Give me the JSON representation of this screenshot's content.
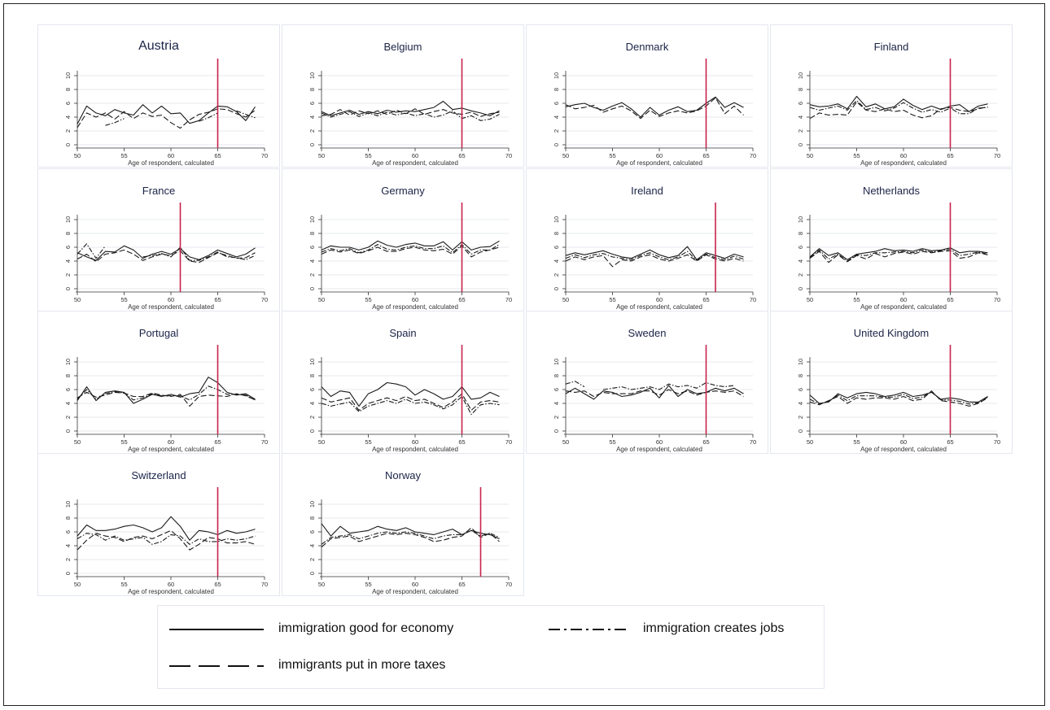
{
  "chart_data": {
    "type": "line",
    "xlabel": "Age of respondent, calculated",
    "xlim": [
      50,
      70
    ],
    "xticks": [
      50,
      55,
      60,
      65,
      70
    ],
    "ylim": [
      0,
      10
    ],
    "yticks": [
      0,
      2,
      4,
      6,
      8,
      10
    ],
    "x": [
      50,
      51,
      52,
      53,
      54,
      55,
      56,
      57,
      58,
      59,
      60,
      61,
      62,
      63,
      64,
      65,
      66,
      67,
      68,
      69
    ],
    "legend": {
      "economy": "immigration good for economy",
      "jobs": "immigration creates jobs",
      "taxes": "immigrants put in more taxes"
    },
    "panels": [
      {
        "title": "Austria",
        "cutoff": 65,
        "economy": [
          3.0,
          5.6,
          4.6,
          4.2,
          5.1,
          4.6,
          4.3,
          5.8,
          4.6,
          5.6,
          4.5,
          4.6,
          3.1,
          3.5,
          4.6,
          5.6,
          5.5,
          4.8,
          3.5,
          5.5
        ],
        "taxes": [
          2.5,
          4.6,
          4.0,
          4.6,
          3.7,
          4.8,
          3.8,
          4.6,
          4.1,
          4.3,
          3.2,
          2.4,
          3.6,
          4.4,
          4.7,
          5.2,
          5.1,
          4.5,
          4.0,
          5.0
        ],
        "jobs": [
          null,
          null,
          null,
          2.8,
          3.2,
          3.8,
          null,
          null,
          null,
          null,
          null,
          null,
          null,
          3.4,
          3.9,
          4.6,
          null,
          4.9,
          4.4,
          3.9
        ]
      },
      {
        "title": "Belgium",
        "cutoff": 65,
        "economy": [
          4.8,
          4.2,
          4.6,
          5.0,
          4.4,
          4.8,
          4.5,
          5.0,
          4.7,
          4.9,
          4.8,
          5.1,
          5.4,
          6.3,
          5.1,
          5.3,
          4.9,
          4.6,
          4.2,
          4.9
        ],
        "taxes": [
          4.2,
          4.4,
          5.1,
          4.3,
          4.9,
          4.5,
          4.9,
          4.4,
          5.0,
          4.5,
          5.2,
          4.4,
          4.8,
          5.1,
          4.6,
          4.4,
          4.7,
          4.1,
          4.5,
          4.7
        ],
        "jobs": [
          4.6,
          4.0,
          4.4,
          4.8,
          4.1,
          4.6,
          4.2,
          4.7,
          4.3,
          4.6,
          4.2,
          4.5,
          4.0,
          4.3,
          4.9,
          3.8,
          4.2,
          3.5,
          3.7,
          4.4
        ]
      },
      {
        "title": "Denmark",
        "cutoff": 65,
        "economy": [
          5.5,
          5.8,
          6.0,
          5.4,
          5.0,
          5.6,
          6.1,
          5.2,
          4.0,
          5.4,
          4.3,
          5.0,
          5.5,
          4.8,
          5.0,
          6.0,
          6.9,
          5.4,
          6.1,
          5.4
        ],
        "taxes": [
          5.8,
          5.2,
          5.4,
          5.7,
          4.7,
          5.2,
          5.6,
          4.9,
          3.8,
          5.0,
          4.1,
          4.6,
          4.9,
          4.6,
          4.9,
          5.6,
          6.8,
          4.5,
          5.6,
          4.3
        ],
        "jobs": [
          null,
          null,
          null,
          null,
          null,
          null,
          null,
          null,
          null,
          null,
          null,
          null,
          null,
          null,
          null,
          null,
          6.5,
          null,
          null,
          null
        ]
      },
      {
        "title": "Finland",
        "cutoff": 65,
        "economy": [
          5.8,
          5.5,
          5.6,
          5.9,
          5.2,
          7.0,
          5.5,
          5.9,
          5.2,
          5.5,
          6.6,
          5.7,
          5.1,
          5.6,
          5.1,
          5.6,
          5.8,
          4.8,
          5.6,
          5.9
        ],
        "taxes": [
          3.8,
          4.6,
          4.3,
          4.4,
          4.3,
          6.2,
          5.0,
          4.8,
          5.2,
          4.8,
          5.0,
          4.3,
          3.9,
          4.2,
          5.2,
          5.4,
          5.0,
          4.8,
          5.2,
          5.5
        ],
        "jobs": [
          5.4,
          5.0,
          5.3,
          5.6,
          5.0,
          6.4,
          5.1,
          5.4,
          4.9,
          5.3,
          6.1,
          5.3,
          4.7,
          5.1,
          4.7,
          5.3,
          4.5,
          4.5,
          5.3,
          5.4
        ]
      },
      {
        "title": "France",
        "cutoff": 61,
        "economy": [
          5.2,
          4.6,
          4.1,
          5.4,
          5.3,
          6.2,
          5.6,
          4.4,
          5.0,
          5.4,
          5.0,
          5.8,
          4.6,
          4.2,
          4.8,
          5.6,
          5.1,
          4.6,
          5.0,
          5.9
        ],
        "taxes": [
          4.3,
          5.0,
          3.9,
          5.0,
          5.2,
          5.6,
          5.0,
          4.1,
          4.6,
          5.0,
          4.8,
          5.5,
          4.0,
          3.8,
          4.5,
          5.2,
          4.8,
          4.4,
          4.5,
          5.2
        ],
        "jobs": [
          5.0,
          6.5,
          4.4,
          6.2,
          null,
          null,
          null,
          4.6,
          4.8,
          5.1,
          4.6,
          6.0,
          4.1,
          4.1,
          4.6,
          5.3,
          4.6,
          4.5,
          4.2,
          4.8
        ]
      },
      {
        "title": "Germany",
        "cutoff": 65,
        "economy": [
          5.6,
          6.2,
          6.0,
          6.0,
          5.6,
          6.0,
          6.9,
          6.3,
          6.0,
          6.4,
          6.6,
          6.2,
          6.2,
          6.8,
          5.6,
          6.8,
          5.6,
          6.0,
          6.1,
          6.9
        ],
        "taxes": [
          5.0,
          5.6,
          5.3,
          5.6,
          5.1,
          5.5,
          6.0,
          5.4,
          5.4,
          5.8,
          6.0,
          5.6,
          5.5,
          5.7,
          5.0,
          6.2,
          4.6,
          5.3,
          5.6,
          6.0
        ],
        "jobs": [
          5.3,
          5.8,
          5.5,
          5.8,
          5.2,
          5.6,
          6.4,
          5.7,
          5.6,
          6.0,
          6.2,
          5.8,
          5.8,
          6.2,
          5.2,
          6.4,
          5.0,
          5.6,
          5.6,
          6.4
        ]
      },
      {
        "title": "Ireland",
        "cutoff": 66,
        "economy": [
          4.8,
          5.2,
          4.9,
          5.2,
          5.5,
          5.0,
          4.6,
          4.4,
          5.0,
          5.6,
          4.9,
          4.5,
          4.8,
          6.1,
          4.2,
          5.2,
          4.8,
          4.4,
          5.0,
          4.6
        ],
        "taxes": [
          4.0,
          4.6,
          4.2,
          4.6,
          4.8,
          3.2,
          4.2,
          4.0,
          4.6,
          4.9,
          4.3,
          4.0,
          4.4,
          4.9,
          4.0,
          4.9,
          4.3,
          4.0,
          4.4,
          4.0
        ],
        "jobs": [
          4.4,
          4.9,
          4.5,
          4.9,
          5.1,
          4.6,
          4.4,
          4.2,
          4.8,
          5.2,
          4.6,
          4.2,
          4.6,
          5.4,
          4.1,
          5.0,
          4.5,
          4.2,
          4.7,
          4.3
        ]
      },
      {
        "title": "Netherlands",
        "cutoff": 65,
        "economy": [
          4.6,
          5.8,
          4.8,
          5.2,
          4.2,
          5.0,
          5.2,
          5.4,
          5.8,
          5.5,
          5.6,
          5.4,
          5.8,
          5.5,
          5.6,
          5.9,
          5.2,
          5.4,
          5.4,
          5.2
        ],
        "taxes": [
          4.4,
          5.4,
          3.8,
          4.9,
          3.9,
          4.8,
          4.3,
          5.1,
          4.6,
          5.1,
          5.3,
          5.0,
          5.4,
          5.2,
          5.4,
          5.5,
          4.4,
          4.6,
          5.2,
          4.9
        ],
        "jobs": [
          4.5,
          5.6,
          4.3,
          5.0,
          4.0,
          4.9,
          4.8,
          5.2,
          5.2,
          5.3,
          5.4,
          5.2,
          5.6,
          5.3,
          5.5,
          5.7,
          4.8,
          5.0,
          5.3,
          5.0
        ]
      },
      {
        "title": "Portugal",
        "cutoff": 65,
        "economy": [
          4.4,
          6.4,
          4.4,
          5.6,
          5.8,
          5.6,
          4.0,
          4.6,
          5.3,
          5.0,
          5.3,
          4.9,
          5.4,
          5.6,
          7.8,
          7.0,
          5.6,
          5.2,
          5.4,
          4.6
        ],
        "taxes": [
          4.8,
          5.6,
          4.9,
          5.2,
          5.6,
          5.5,
          5.0,
          5.0,
          5.5,
          5.2,
          5.0,
          5.3,
          3.6,
          5.0,
          5.2,
          5.1,
          5.0,
          5.4,
          5.1,
          4.5
        ],
        "jobs": [
          4.6,
          6.0,
          4.6,
          5.4,
          5.7,
          5.5,
          4.5,
          4.8,
          5.4,
          5.1,
          5.1,
          5.1,
          4.5,
          5.3,
          6.5,
          6.0,
          5.3,
          5.3,
          5.2,
          4.5
        ]
      },
      {
        "title": "Spain",
        "cutoff": 65,
        "economy": [
          6.4,
          5.0,
          5.8,
          5.6,
          3.6,
          5.4,
          6.0,
          7.0,
          6.8,
          6.4,
          5.2,
          6.0,
          5.4,
          4.6,
          5.0,
          6.4,
          4.6,
          4.8,
          5.6,
          5.0
        ],
        "taxes": [
          4.8,
          4.2,
          4.5,
          4.8,
          3.0,
          4.0,
          4.4,
          4.8,
          4.4,
          5.0,
          4.4,
          4.6,
          4.0,
          3.4,
          4.2,
          5.4,
          3.0,
          4.2,
          4.4,
          4.2
        ],
        "jobs": [
          4.0,
          3.6,
          3.9,
          4.2,
          2.8,
          3.6,
          4.0,
          4.4,
          4.0,
          4.6,
          4.0,
          4.2,
          3.8,
          3.2,
          3.8,
          5.0,
          2.4,
          3.8,
          4.0,
          3.8
        ]
      },
      {
        "title": "Sweden",
        "cutoff": 65,
        "economy": [
          5.4,
          6.2,
          5.4,
          4.6,
          5.8,
          5.6,
          5.0,
          5.2,
          5.6,
          6.2,
          4.8,
          6.6,
          5.0,
          6.0,
          5.4,
          5.6,
          6.2,
          5.8,
          6.2,
          5.4
        ],
        "taxes": [
          5.8,
          5.6,
          5.8,
          5.0,
          5.6,
          5.4,
          5.4,
          5.4,
          5.8,
          5.8,
          5.2,
          6.0,
          5.4,
          5.8,
          5.2,
          5.6,
          5.8,
          5.6,
          5.8,
          5.0
        ],
        "jobs": [
          6.8,
          7.2,
          6.4,
          null,
          6.0,
          6.2,
          6.4,
          6.0,
          6.2,
          6.4,
          6.0,
          6.8,
          6.4,
          6.6,
          6.2,
          7.0,
          6.6,
          6.4,
          6.6,
          null
        ]
      },
      {
        "title": "United Kingdom",
        "cutoff": 65,
        "economy": [
          5.2,
          4.0,
          4.2,
          5.4,
          4.8,
          5.4,
          5.6,
          5.4,
          5.0,
          5.2,
          5.6,
          5.0,
          5.2,
          5.6,
          4.6,
          4.8,
          4.6,
          4.2,
          4.2,
          5.0
        ],
        "taxes": [
          4.2,
          3.8,
          4.4,
          5.0,
          4.0,
          4.8,
          4.6,
          4.8,
          4.8,
          4.6,
          5.0,
          4.4,
          4.6,
          5.8,
          4.4,
          4.2,
          4.0,
          3.6,
          4.0,
          4.8
        ],
        "jobs": [
          4.6,
          3.9,
          4.3,
          5.2,
          4.4,
          5.1,
          5.1,
          5.1,
          4.9,
          4.9,
          5.3,
          4.7,
          4.9,
          5.7,
          4.5,
          4.5,
          4.3,
          3.9,
          4.1,
          4.9
        ]
      },
      {
        "title": "Switzerland",
        "cutoff": 65,
        "economy": [
          5.4,
          7.0,
          6.2,
          6.2,
          6.4,
          6.8,
          7.0,
          6.6,
          6.0,
          6.6,
          8.2,
          6.8,
          4.8,
          6.2,
          6.0,
          5.6,
          6.2,
          5.8,
          6.0,
          6.4
        ],
        "taxes": [
          3.4,
          4.8,
          5.8,
          5.4,
          5.2,
          4.6,
          5.2,
          5.4,
          5.0,
          5.6,
          6.2,
          5.0,
          3.4,
          4.2,
          5.2,
          5.0,
          4.4,
          4.4,
          4.6,
          4.2
        ],
        "jobs": [
          5.0,
          5.8,
          5.6,
          4.8,
          5.4,
          4.8,
          5.0,
          5.2,
          4.2,
          4.6,
          5.6,
          5.4,
          4.2,
          5.0,
          4.6,
          4.6,
          5.0,
          4.8,
          5.0,
          5.4
        ]
      },
      {
        "title": "Norway",
        "cutoff": 67,
        "economy": [
          7.2,
          5.4,
          6.8,
          5.8,
          6.0,
          6.2,
          6.8,
          6.4,
          6.2,
          6.6,
          6.0,
          5.8,
          5.6,
          6.0,
          6.4,
          5.6,
          6.2,
          5.8,
          5.6,
          5.0
        ],
        "taxes": [
          3.8,
          5.0,
          5.2,
          5.4,
          4.6,
          5.0,
          5.4,
          5.8,
          5.6,
          5.8,
          5.6,
          5.2,
          4.6,
          4.8,
          5.2,
          5.4,
          6.6,
          5.2,
          5.8,
          4.6
        ],
        "jobs": [
          4.2,
          5.2,
          5.4,
          5.6,
          5.0,
          5.4,
          5.8,
          6.0,
          5.8,
          6.0,
          5.8,
          5.4,
          5.0,
          5.4,
          5.6,
          5.6,
          6.2,
          5.4,
          5.8,
          5.2
        ]
      }
    ]
  }
}
